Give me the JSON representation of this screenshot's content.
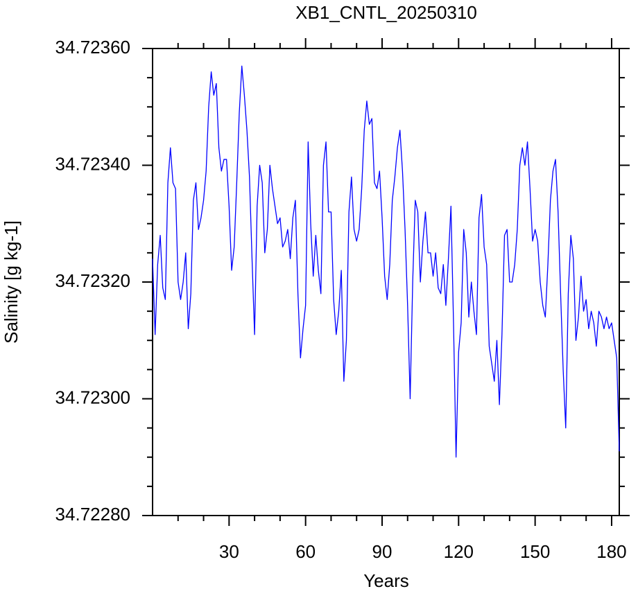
{
  "chart_data": {
    "type": "line",
    "title": "XB1_CNTL_20250310",
    "xlabel": "Years",
    "ylabel": "Salinity [g kg-1]",
    "color": "#0000ff",
    "x": [
      0,
      1,
      2,
      3,
      4,
      5,
      6,
      7,
      8,
      9,
      10,
      11,
      12,
      13,
      14,
      15,
      16,
      17,
      18,
      19,
      20,
      21,
      22,
      23,
      24,
      25,
      26,
      27,
      28,
      29,
      30,
      31,
      32,
      33,
      34,
      35,
      36,
      37,
      38,
      39,
      40,
      41,
      42,
      43,
      44,
      45,
      46,
      47,
      48,
      49,
      50,
      51,
      52,
      53,
      54,
      55,
      56,
      57,
      58,
      59,
      60,
      61,
      62,
      63,
      64,
      65,
      66,
      67,
      68,
      69,
      70,
      71,
      72,
      73,
      74,
      75,
      76,
      77,
      78,
      79,
      80,
      81,
      82,
      83,
      84,
      85,
      86,
      87,
      88,
      89,
      90,
      91,
      92,
      93,
      94,
      95,
      96,
      97,
      98,
      99,
      100,
      101,
      102,
      103,
      104,
      105,
      106,
      107,
      108,
      109,
      110,
      111,
      112,
      113,
      114,
      115,
      116,
      117,
      118,
      119,
      120,
      121,
      122,
      123,
      124,
      125,
      126,
      127,
      128,
      129,
      130,
      131,
      132,
      133,
      134,
      135,
      136,
      137,
      138,
      139,
      140,
      141,
      142,
      143,
      144,
      145,
      146,
      147,
      148,
      149,
      150,
      151,
      152,
      153,
      154,
      155,
      156,
      157,
      158,
      159,
      160,
      161,
      162,
      163,
      164,
      165,
      166,
      167,
      168,
      169,
      170,
      171,
      172,
      173,
      174,
      175,
      176,
      177,
      178,
      179,
      180,
      181,
      182,
      183
    ],
    "values": [
      34.72324,
      34.72311,
      34.72323,
      34.72328,
      34.72319,
      34.72317,
      34.72337,
      34.72343,
      34.72337,
      34.72336,
      34.7232,
      34.72317,
      34.7232,
      34.72325,
      34.72312,
      34.72318,
      34.72334,
      34.72337,
      34.72329,
      34.72331,
      34.72334,
      34.72339,
      34.7235,
      34.72356,
      34.72352,
      34.72354,
      34.72343,
      34.72339,
      34.72341,
      34.72341,
      34.72333,
      34.72322,
      34.72326,
      34.72337,
      34.72349,
      34.72357,
      34.72352,
      34.72346,
      34.72338,
      34.72324,
      34.72311,
      34.72333,
      34.7234,
      34.72337,
      34.72325,
      34.72329,
      34.7234,
      34.72336,
      34.72333,
      34.7233,
      34.72331,
      34.72326,
      34.72327,
      34.72329,
      34.72324,
      34.72331,
      34.72334,
      34.72318,
      34.72307,
      34.72312,
      34.72316,
      34.72344,
      34.7233,
      34.72321,
      34.72328,
      34.72322,
      34.72318,
      34.7234,
      34.72344,
      34.72332,
      34.72332,
      34.72317,
      34.72311,
      34.72315,
      34.72322,
      34.72303,
      34.7231,
      34.72332,
      34.72338,
      34.72329,
      34.72327,
      34.72329,
      34.72336,
      34.72346,
      34.72351,
      34.72347,
      34.72348,
      34.72337,
      34.72336,
      34.72339,
      34.72331,
      34.72321,
      34.72317,
      34.72323,
      34.72334,
      34.72338,
      34.72343,
      34.72346,
      34.72339,
      34.72329,
      34.72316,
      34.723,
      34.7232,
      34.72334,
      34.72332,
      34.7232,
      34.72327,
      34.72332,
      34.72325,
      34.72325,
      34.72321,
      34.72325,
      34.72319,
      34.72318,
      34.72323,
      34.72316,
      34.72324,
      34.72333,
      34.72313,
      34.7229,
      34.72308,
      34.72313,
      34.72329,
      34.72325,
      34.72314,
      34.7232,
      34.72315,
      34.72311,
      34.72331,
      34.72335,
      34.72326,
      34.72323,
      34.72309,
      34.72306,
      34.72303,
      34.7231,
      34.72299,
      34.72311,
      34.72328,
      34.72329,
      34.7232,
      34.7232,
      34.72323,
      34.72329,
      34.7234,
      34.72343,
      34.7234,
      34.72344,
      34.72336,
      34.72327,
      34.72329,
      34.72327,
      34.7232,
      34.72316,
      34.72314,
      34.72323,
      34.72334,
      34.72339,
      34.72341,
      34.72332,
      34.72318,
      34.72305,
      34.72295,
      34.72318,
      34.72328,
      34.72324,
      34.7231,
      34.72314,
      34.72321,
      34.72315,
      34.72317,
      34.72312,
      34.72315,
      34.72313,
      34.72309,
      34.72315,
      34.72314,
      34.72312,
      34.72314,
      34.72312,
      34.72313,
      34.7231,
      34.72307,
      34.72291
    ],
    "xlim": [
      0,
      183
    ],
    "ylim": [
      34.7228,
      34.7236
    ],
    "xticks": [
      30,
      60,
      90,
      120,
      150,
      180
    ],
    "xminorticks": [
      10,
      20,
      40,
      50,
      70,
      80,
      100,
      110,
      130,
      140,
      160,
      170
    ],
    "yticks": [
      {
        "value": 34.7228,
        "label": "34.72280"
      },
      {
        "value": 34.723,
        "label": "34.72300"
      },
      {
        "value": 34.7232,
        "label": "34.72320"
      },
      {
        "value": 34.7234,
        "label": "34.72340"
      },
      {
        "value": 34.7236,
        "label": "34.72360"
      }
    ],
    "yminorticks": [
      34.72285,
      34.7229,
      34.72295,
      34.72305,
      34.7231,
      34.72315,
      34.72325,
      34.7233,
      34.72335,
      34.72345,
      34.7235,
      34.72355
    ]
  }
}
